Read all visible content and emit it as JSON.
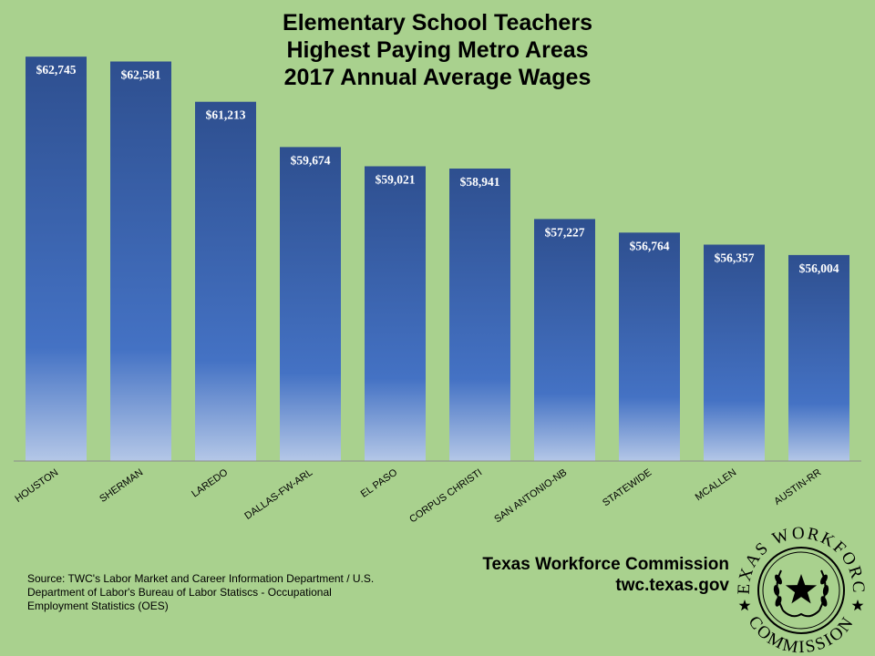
{
  "chart_data": {
    "type": "bar",
    "title_lines": [
      "Elementary School Teachers",
      "Highest Paying Metro Areas",
      "2017 Annual Average Wages"
    ],
    "categories": [
      "HOUSTON",
      "SHERMAN",
      "LAREDO",
      "DALLAS-FW-ARL",
      "EL PASO",
      "CORPUS CHRISTI",
      "SAN ANTONIO-NB",
      "STATEWIDE",
      "MCALLEN",
      "AUSTIN-RR"
    ],
    "values": [
      62745,
      62581,
      61213,
      59674,
      59021,
      58941,
      57227,
      56764,
      56357,
      56004
    ],
    "data_labels": [
      "$62,745",
      "$62,581",
      "$61,213",
      "$59,674",
      "$59,021",
      "$58,941",
      "$57,227",
      "$56,764",
      "$56,357",
      "$56,004"
    ],
    "ylim": [
      49000,
      63000
    ],
    "grid": false,
    "legend": "none",
    "colors": {
      "bar_top": "#2e4f8f",
      "bar_mid": "#4472c4",
      "bar_bottom": "#b4c7e7",
      "label_text": "#ffffff"
    }
  },
  "branding": {
    "org_name": "Texas Workforce Commission",
    "website": "twc.texas.gov"
  },
  "source": {
    "text": "Source: TWC's Labor Market and Career Information Department / U.S. Department of Labor's Bureau of Labor Statiscs - Occupational Employment Statistics (OES)"
  },
  "logo": {
    "top_text": "TEXAS WORKFORCE",
    "bottom_text": "COMMISSION"
  },
  "background_color": "#a9d18e"
}
